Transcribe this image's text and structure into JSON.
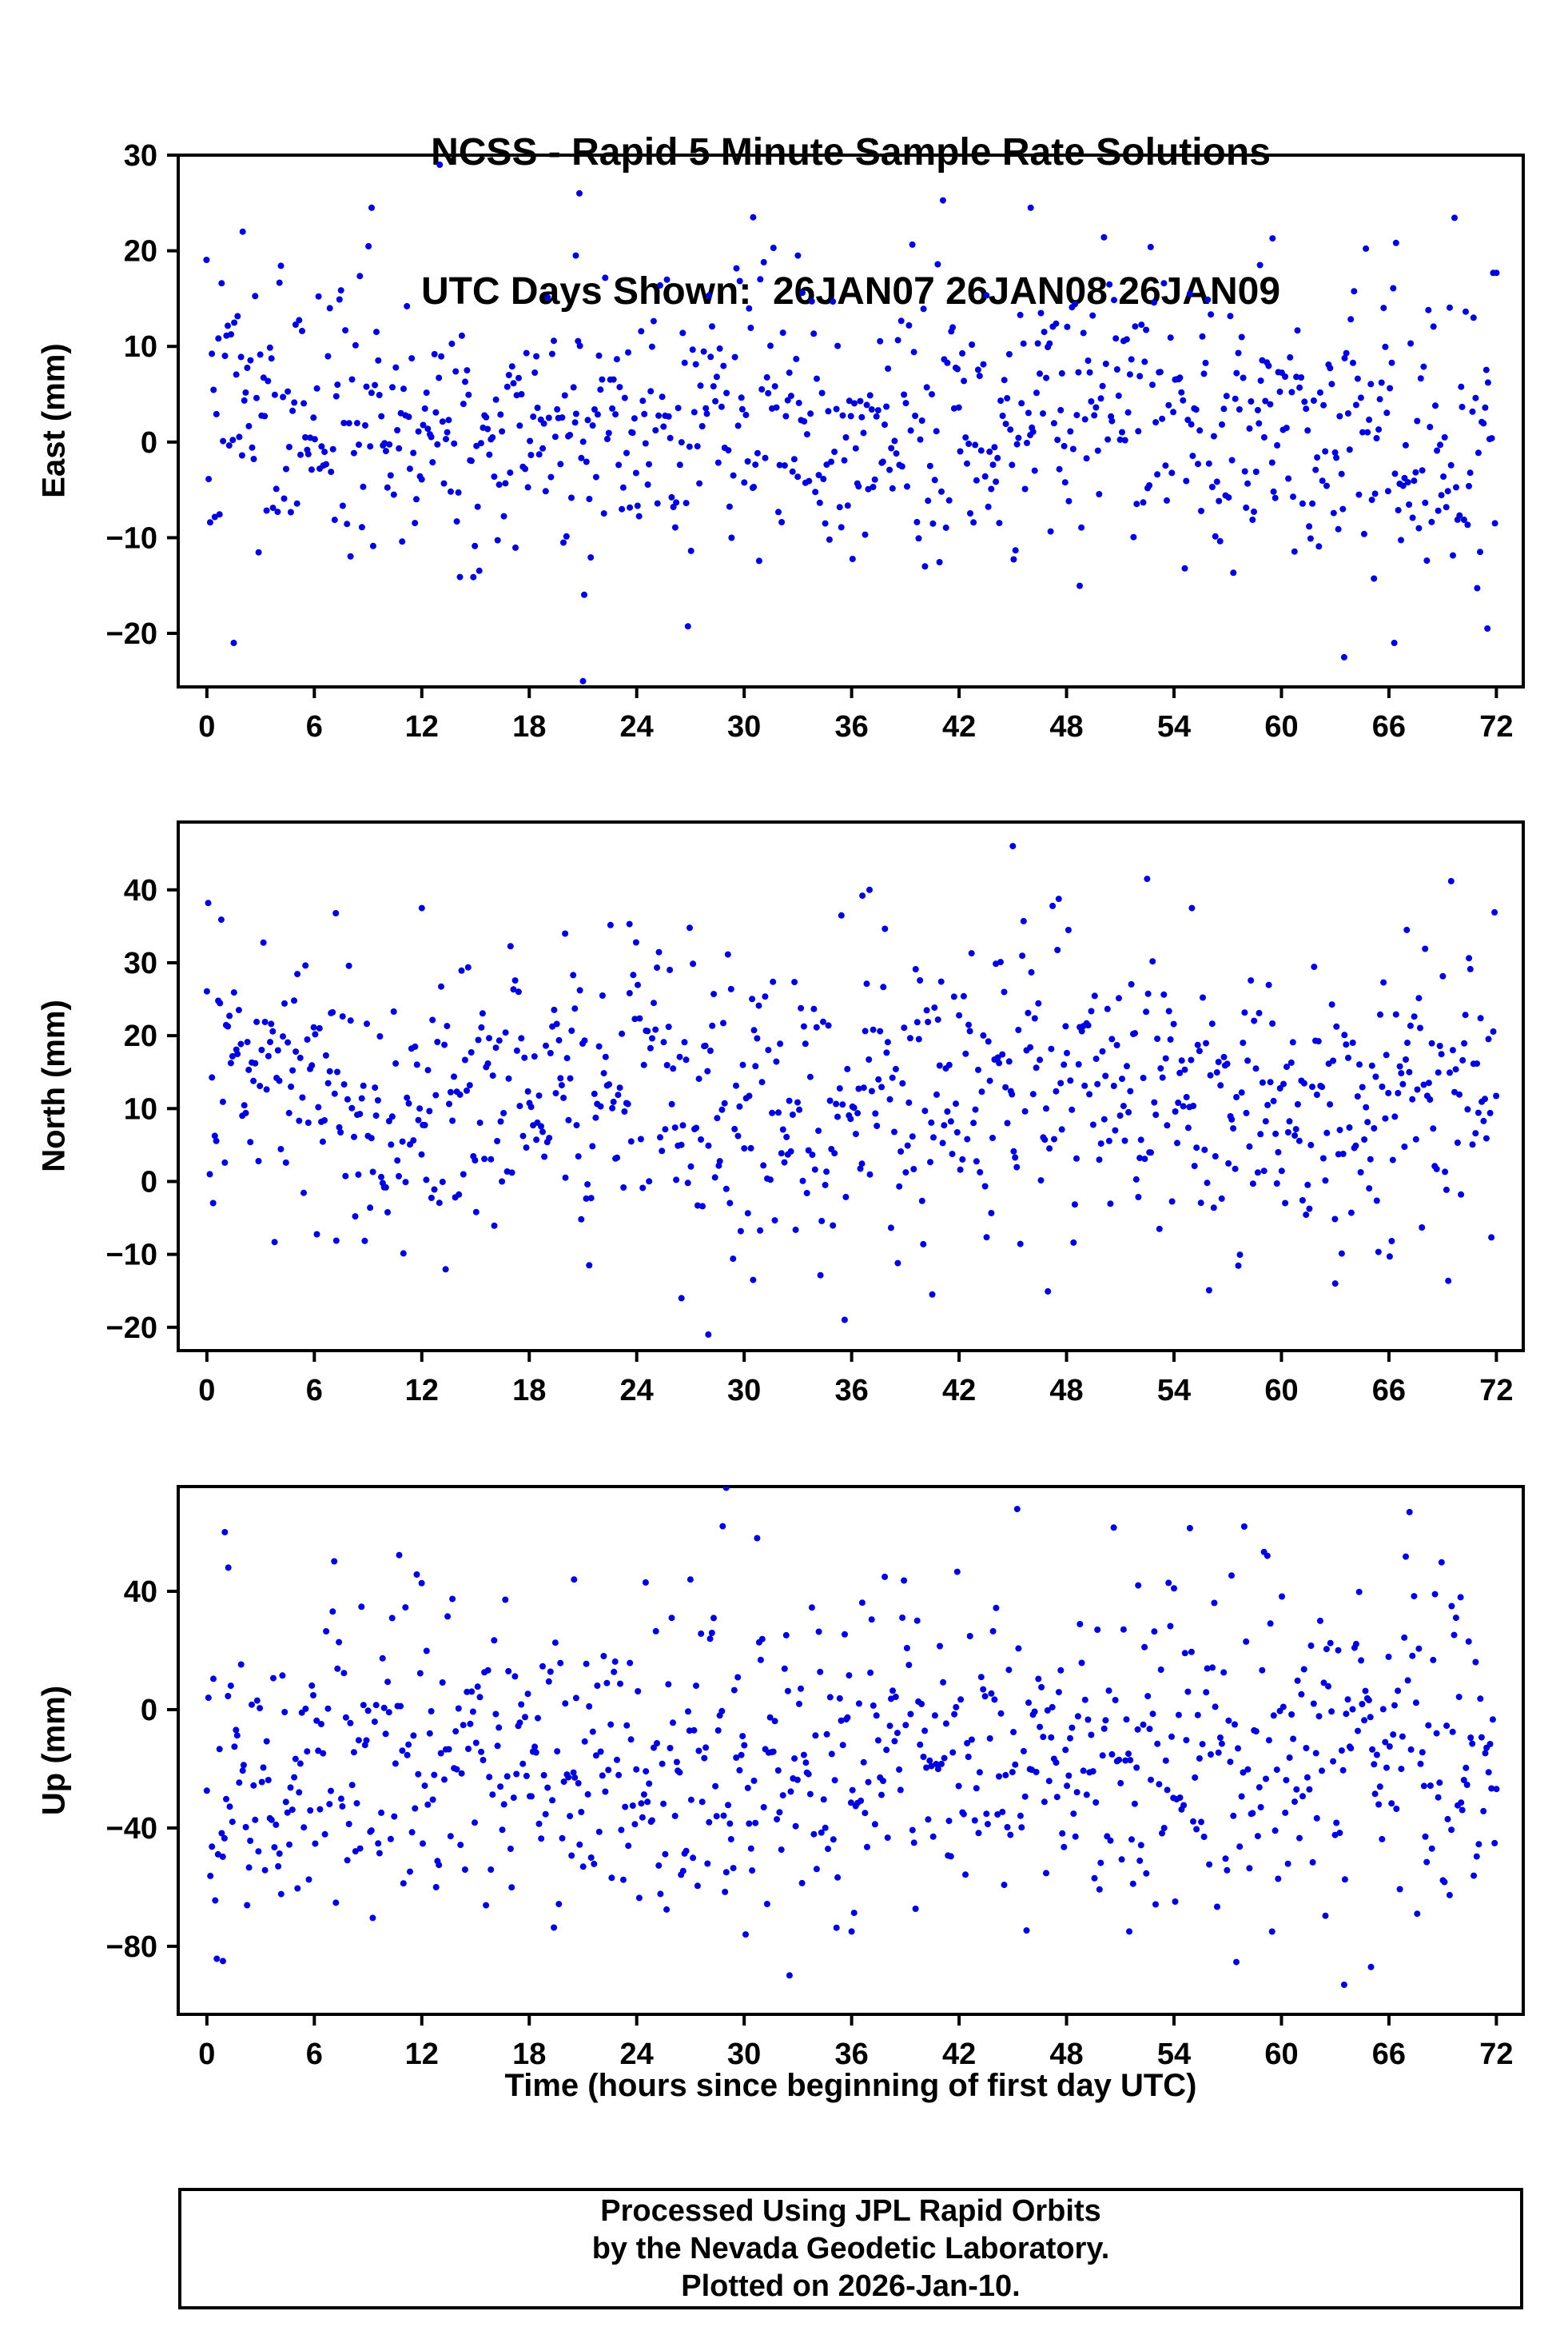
{
  "title": {
    "line1": "NCSS - Rapid 5 Minute Sample Rate Solutions",
    "line2": "UTC Days Shown:  26JAN07 26JAN08 26JAN09"
  },
  "xlabel": "Time (hours since beginning of first day UTC)",
  "footer": {
    "line1": "Processed Using JPL Rapid Orbits",
    "line2": "by the Nevada Geodetic Laboratory.",
    "line3": "Plotted on 2026-Jan-10."
  },
  "chart_data": {
    "type": "scatter",
    "marker_color": "#0000DD",
    "marker_radius": 4,
    "grid": false,
    "x": {
      "lim": [
        -1.6,
        73.5
      ],
      "ticks": [
        0,
        6,
        12,
        18,
        24,
        30,
        36,
        42,
        48,
        54,
        60,
        66,
        72
      ],
      "label": "Time (hours since beginning of first day UTC)"
    },
    "panels": [
      {
        "name": "east",
        "ylabel": "East (mm)",
        "ylim": [
          -25.6,
          30
        ],
        "yticks": [
          -20,
          -10,
          0,
          10,
          20,
          30
        ],
        "n": 800,
        "mean": 2,
        "std": 7,
        "daily_amp": 1.5,
        "phase": 0.5,
        "seed": 7,
        "outliers": [
          [
            13,
            29
          ],
          [
            20.8,
            26
          ],
          [
            21,
            -25
          ],
          [
            1.5,
            -21
          ],
          [
            46,
            24.5
          ],
          [
            30.5,
            23.5
          ],
          [
            9.2,
            24.5
          ],
          [
            2.0,
            22
          ],
          [
            59.5,
            21.3
          ],
          [
            63.5,
            -22.5
          ],
          [
            66.3,
            -21
          ],
          [
            20.6,
            19.5
          ],
          [
            71.5,
            -19.5
          ],
          [
            58.8,
            18.5
          ],
          [
            33,
            19.5
          ]
        ]
      },
      {
        "name": "north",
        "ylabel": "North (mm)",
        "ylim": [
          -23.2,
          49.3
        ],
        "yticks": [
          -20,
          -10,
          0,
          10,
          20,
          30,
          40
        ],
        "n": 800,
        "mean": 12,
        "std": 9.5,
        "daily_amp": 2,
        "phase": 2.0,
        "seed": 13,
        "outliers": [
          [
            45,
            46
          ],
          [
            28,
            -21
          ],
          [
            12,
            37.5
          ],
          [
            7.2,
            36.8
          ],
          [
            52.5,
            41.5
          ],
          [
            37,
            40
          ],
          [
            36.6,
            39.2
          ],
          [
            20,
            34
          ],
          [
            23.6,
            35.3
          ],
          [
            63,
            -14
          ],
          [
            40.5,
            -15.5
          ],
          [
            26.5,
            -16
          ],
          [
            30.5,
            -13.5
          ],
          [
            55,
            37.5
          ],
          [
            67,
            34.5
          ]
        ]
      },
      {
        "name": "up",
        "ylabel": "Up (mm)",
        "ylim": [
          -103,
          75.4
        ],
        "yticks": [
          -80,
          -40,
          0,
          40
        ],
        "n": 800,
        "mean": -16,
        "std": 26,
        "daily_amp": 6,
        "phase": 4.0,
        "seed": 21,
        "outliers": [
          [
            29,
            75
          ],
          [
            28.8,
            62
          ],
          [
            1,
            60
          ],
          [
            1.2,
            48
          ],
          [
            0.9,
            -85
          ],
          [
            65,
            -87
          ],
          [
            63.5,
            -93
          ],
          [
            52,
            42
          ],
          [
            54,
            41
          ],
          [
            20.5,
            44
          ],
          [
            27,
            44
          ],
          [
            24.5,
            43
          ],
          [
            51.5,
            -75
          ],
          [
            36,
            -75
          ],
          [
            70,
            38
          ],
          [
            69.5,
            35
          ]
        ]
      }
    ]
  }
}
